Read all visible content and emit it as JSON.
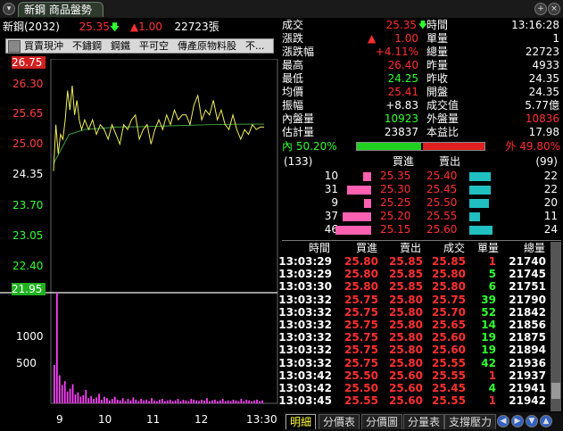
{
  "window": {
    "tab_title": "新鋼 商品盤勢"
  },
  "symbol": {
    "name": "新鋼(2032)",
    "price": "25.35",
    "change": "1.00",
    "volume": "22723",
    "volume_unit": "張"
  },
  "toolbar": {
    "items": [
      "買賣現沖",
      "不鏽鋼",
      "鋼鐵",
      "平可空",
      "傳產原物料股",
      "不..."
    ]
  },
  "price_axis": {
    "labels": [
      "26.75",
      "26.30",
      "25.65",
      "25.00",
      "24.35",
      "23.70",
      "23.05",
      "22.40",
      "21.95"
    ],
    "label_colors": [
      "#ff4040",
      "#ff4040",
      "#ff4040",
      "#ff4040",
      "#ffffff",
      "#30ff30",
      "#30ff30",
      "#30ff30",
      "#30ff30"
    ]
  },
  "volume_axis": {
    "labels": [
      "1000",
      "500"
    ]
  },
  "time_axis": {
    "labels": [
      "9",
      "10",
      "11",
      "12",
      "13:30"
    ]
  },
  "chart_data": {
    "type": "line",
    "series": [],
    "price_line": [
      [
        0,
        24.45
      ],
      [
        3,
        25.4
      ],
      [
        6,
        24.8
      ],
      [
        9,
        25.2
      ],
      [
        12,
        25.1
      ],
      [
        15,
        25.5
      ],
      [
        18,
        26.1
      ],
      [
        21,
        25.7
      ],
      [
        24,
        26.2
      ],
      [
        27,
        25.6
      ],
      [
        30,
        25.9
      ],
      [
        33,
        25.5
      ],
      [
        36,
        25.3
      ],
      [
        40,
        25.5
      ],
      [
        45,
        25.3
      ],
      [
        50,
        25.5
      ],
      [
        55,
        25.2
      ],
      [
        60,
        25.4
      ],
      [
        65,
        25.3
      ],
      [
        70,
        25.1
      ],
      [
        75,
        25.4
      ],
      [
        80,
        25.2
      ],
      [
        85,
        25.0
      ],
      [
        90,
        25.4
      ],
      [
        95,
        25.3
      ],
      [
        100,
        25.5
      ],
      [
        105,
        25.6
      ],
      [
        110,
        25.1
      ],
      [
        115,
        25.3
      ],
      [
        120,
        25.4
      ],
      [
        125,
        25.0
      ],
      [
        130,
        25.3
      ],
      [
        135,
        25.5
      ],
      [
        140,
        25.3
      ],
      [
        145,
        25.6
      ],
      [
        150,
        25.4
      ],
      [
        155,
        25.7
      ],
      [
        160,
        25.5
      ],
      [
        165,
        25.6
      ],
      [
        170,
        25.6
      ],
      [
        175,
        25.4
      ],
      [
        180,
        25.8
      ],
      [
        185,
        26.0
      ],
      [
        190,
        25.5
      ],
      [
        195,
        25.7
      ],
      [
        200,
        25.6
      ],
      [
        205,
        25.9
      ],
      [
        210,
        25.5
      ],
      [
        215,
        25.7
      ],
      [
        220,
        25.4
      ],
      [
        225,
        25.3
      ],
      [
        230,
        25.6
      ],
      [
        235,
        25.3
      ],
      [
        240,
        25.1
      ],
      [
        245,
        25.3
      ],
      [
        250,
        25.2
      ],
      [
        255,
        25.4
      ],
      [
        260,
        25.3
      ],
      [
        265,
        25.35
      ],
      [
        270,
        25.35
      ]
    ],
    "avg_line": [
      [
        0,
        24.6
      ],
      [
        20,
        25.2
      ],
      [
        40,
        25.3
      ],
      [
        80,
        25.35
      ],
      [
        120,
        25.36
      ],
      [
        160,
        25.38
      ],
      [
        200,
        25.4
      ],
      [
        240,
        25.41
      ],
      [
        270,
        25.41
      ]
    ],
    "volume_bars": [
      520,
      1500,
      380,
      250,
      300,
      160,
      200,
      260,
      120,
      150,
      90,
      110,
      180,
      70,
      100,
      60,
      80,
      130,
      50,
      90,
      70,
      40,
      60,
      90,
      50,
      40,
      70,
      30,
      60,
      40,
      80,
      50,
      30,
      60,
      40,
      50,
      30,
      70,
      40,
      30,
      50,
      60,
      30,
      40,
      50,
      30,
      40,
      60,
      30,
      50,
      40,
      30,
      60,
      50,
      40,
      30,
      50,
      40,
      70,
      30,
      40,
      50,
      30,
      40,
      60,
      30,
      40,
      30,
      50,
      40,
      30,
      60,
      30,
      50,
      40,
      30,
      40,
      50,
      30,
      40
    ],
    "ylim": [
      21.95,
      26.75
    ],
    "vol_ylim": [
      0,
      1500
    ]
  },
  "stats_left": [
    {
      "label": "成交",
      "value": "25.35",
      "color": "#ff3030",
      "arrow": "down"
    },
    {
      "label": "漲跌",
      "value": "1.00",
      "color": "#ff3030",
      "arrow": "up-tri"
    },
    {
      "label": "漲跌幅",
      "value": "+4.11%",
      "color": "#ff3030"
    },
    {
      "label": "最高",
      "value": "26.40",
      "color": "#ff3030"
    },
    {
      "label": "最低",
      "value": "24.25",
      "color": "#30ff30"
    },
    {
      "label": "均價",
      "value": "25.41",
      "color": "#ff3030"
    },
    {
      "label": "振幅",
      "value": "+8.83",
      "color": "#ffffff"
    },
    {
      "label": "內盤量",
      "value": "10923",
      "color": "#30ff30"
    },
    {
      "label": "估計量",
      "value": "23837",
      "color": "#ffffff"
    }
  ],
  "stats_right": [
    {
      "label": "時間",
      "value": "13:16:28",
      "color": "#ffffff"
    },
    {
      "label": "單量",
      "value": "1",
      "color": "#ffffff"
    },
    {
      "label": "總量",
      "value": "22723",
      "color": "#ffffff"
    },
    {
      "label": "昨量",
      "value": "4933",
      "color": "#ffffff"
    },
    {
      "label": "昨收",
      "value": "24.35",
      "color": "#ffffff"
    },
    {
      "label": "開盤",
      "value": "24.35",
      "color": "#ffffff"
    },
    {
      "label": "成交值",
      "value": "5.77億",
      "color": "#ffffff"
    },
    {
      "label": "外盤量",
      "value": "10836",
      "color": "#ff3030"
    },
    {
      "label": "本益比",
      "value": "17.98",
      "color": "#ffffff"
    }
  ],
  "inout": {
    "in_label": "內",
    "in_pct": "50.20%",
    "out_label": "外",
    "out_pct": "49.80%",
    "in_fraction": 0.502
  },
  "orderbook": {
    "left_count": "(133)",
    "right_count": "(99)",
    "bid_header": "買進",
    "ask_header": "賣出",
    "rows": [
      {
        "bid_qty": "10",
        "bid_price": "25.35",
        "ask_price": "25.40",
        "ask_qty": "22",
        "bid_bar": 0.22,
        "ask_bar": 0.92
      },
      {
        "bid_qty": "31",
        "bid_price": "25.30",
        "ask_price": "25.45",
        "ask_qty": "22",
        "bid_bar": 0.67,
        "ask_bar": 0.92
      },
      {
        "bid_qty": "9",
        "bid_price": "25.25",
        "ask_price": "25.50",
        "ask_qty": "20",
        "bid_bar": 0.2,
        "ask_bar": 0.83
      },
      {
        "bid_qty": "37",
        "bid_price": "25.20",
        "ask_price": "25.55",
        "ask_qty": "11",
        "bid_bar": 0.8,
        "ask_bar": 0.46
      },
      {
        "bid_qty": "46",
        "bid_price": "25.15",
        "ask_price": "25.60",
        "ask_qty": "24",
        "bid_bar": 1.0,
        "ask_bar": 1.0
      }
    ]
  },
  "ticks": {
    "headers": [
      "時間",
      "買進",
      "賣出",
      "成交",
      "單量",
      "總量"
    ],
    "rows": [
      [
        "13:03:29",
        "25.80",
        "25.85",
        "25.85",
        "1",
        "21740"
      ],
      [
        "13:03:29",
        "25.80",
        "25.85",
        "25.80",
        "5",
        "21745"
      ],
      [
        "13:03:30",
        "25.80",
        "25.85",
        "25.80",
        "6",
        "21751"
      ],
      [
        "13:03:32",
        "25.75",
        "25.80",
        "25.75",
        "39",
        "21790"
      ],
      [
        "13:03:32",
        "25.75",
        "25.80",
        "25.70",
        "52",
        "21842"
      ],
      [
        "13:03:32",
        "25.75",
        "25.80",
        "25.65",
        "14",
        "21856"
      ],
      [
        "13:03:32",
        "25.75",
        "25.80",
        "25.60",
        "19",
        "21875"
      ],
      [
        "13:03:32",
        "25.75",
        "25.80",
        "25.60",
        "19",
        "21894"
      ],
      [
        "13:03:32",
        "25.75",
        "25.80",
        "25.55",
        "42",
        "21936"
      ],
      [
        "13:03:42",
        "25.50",
        "25.60",
        "25.55",
        "1",
        "21937"
      ],
      [
        "13:03:42",
        "25.50",
        "25.60",
        "25.45",
        "4",
        "21941"
      ],
      [
        "13:03:45",
        "25.55",
        "25.60",
        "25.55",
        "1",
        "21942"
      ]
    ]
  },
  "bottom_tabs": [
    "明細",
    "分價表",
    "分價圖",
    "分量表",
    "支撐壓力"
  ]
}
